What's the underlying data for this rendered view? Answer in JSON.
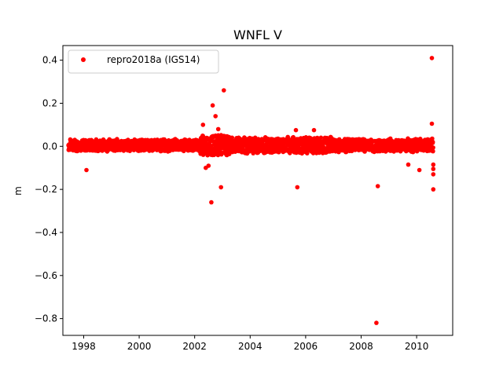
{
  "chart_data": {
    "type": "scatter",
    "title": "WNFL V",
    "xlabel": "",
    "ylabel": "m",
    "xlim": [
      1997.25,
      2011.3
    ],
    "ylim": [
      -0.878,
      0.468
    ],
    "xticks": [
      1998,
      2000,
      2002,
      2004,
      2006,
      2008,
      2010
    ],
    "yticks": [
      0.4,
      0.2,
      0.0,
      -0.2,
      -0.4,
      -0.6,
      -0.8
    ],
    "ytick_labels": [
      "0.4",
      "0.2",
      "0.0",
      "−0.2",
      "−0.4",
      "−0.6",
      "−0.8"
    ],
    "grid": false,
    "legend_position": "top-left",
    "series": [
      {
        "name": "repro2018a (IGS14)",
        "color": "#ff0000",
        "marker": "dot",
        "band": {
          "x_start": 1997.45,
          "x_end": 2010.6,
          "base": 0.005,
          "noise_half": 0.025,
          "seed": 7
        },
        "outliers": [
          [
            1998.1,
            -0.11
          ],
          [
            2002.5,
            -0.09
          ],
          [
            2002.6,
            -0.26
          ],
          [
            2002.65,
            0.19
          ],
          [
            2002.75,
            0.14
          ],
          [
            2002.85,
            0.08
          ],
          [
            2002.95,
            -0.19
          ],
          [
            2003.05,
            0.26
          ],
          [
            2002.3,
            0.1
          ],
          [
            2002.4,
            -0.1
          ],
          [
            2005.65,
            0.075
          ],
          [
            2005.7,
            -0.19
          ],
          [
            2006.3,
            0.075
          ],
          [
            2008.55,
            -0.82
          ],
          [
            2008.6,
            -0.185
          ],
          [
            2009.7,
            -0.085
          ],
          [
            2010.1,
            -0.11
          ],
          [
            2010.55,
            0.41
          ],
          [
            2010.55,
            0.105
          ],
          [
            2010.6,
            -0.085
          ],
          [
            2010.6,
            -0.105
          ],
          [
            2010.6,
            -0.13
          ],
          [
            2010.6,
            -0.2
          ]
        ]
      }
    ]
  }
}
